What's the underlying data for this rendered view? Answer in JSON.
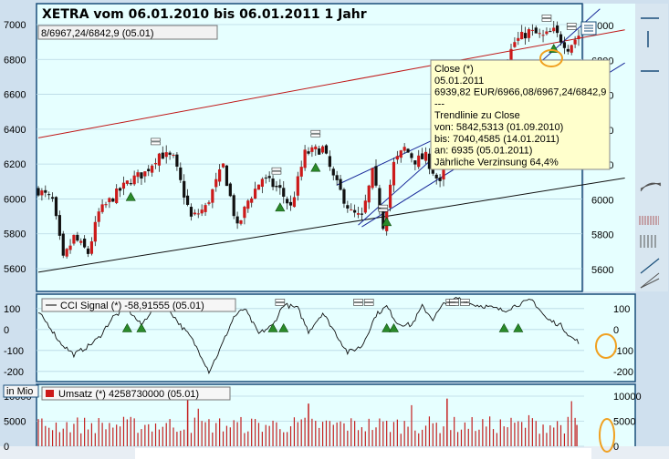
{
  "title": "XETRA vom 06.01.2010 bis 06.01.2011 1 Jahr",
  "top_readout": "8/6967,24/6842,9 (05.01)",
  "colors": {
    "panel_bg": "#e6ffff",
    "frame": "#1a4f7a",
    "up": "#cc1a1a",
    "down": "#111111",
    "signal": "#2a8a2a",
    "trend_red": "#c01818",
    "trend_blue": "#1a2a9a",
    "highlight": "#f0a020",
    "tooltip_bg": "#ffffcc"
  },
  "tooltip": {
    "lines": [
      "Close (*)",
      "05.01.2011",
      "6939,82 EUR/6966,08/6967,24/6842,9",
      "---",
      "Trendlinie zu Close",
      "von: 5842,5313 (01.09.2010)",
      "bis: 7040,4585 (14.01.2011)",
      "an: 6935 (05.01.2011)",
      "Jährliche Verzinsung 64,4%"
    ]
  },
  "toolbar": {
    "icons": [
      "menu-icon",
      "crosshair-icon",
      "hline-icon",
      "fan-icon",
      "arc-icon",
      "bars-icon",
      "grid-icon",
      "lines-icon",
      "pencil-icon",
      "pencil-fan-icon"
    ]
  },
  "panels": {
    "cci_label": "CCI Signal (*) -58,91555 (05.01)",
    "volume_label": "Umsatz (*) 4258730000 (05.01)",
    "volume_unit": "in Mio"
  },
  "chart_data": [
    {
      "type": "candlestick",
      "title": "XETRA vom 06.01.2010 bis 06.01.2011 1 Jahr",
      "ylim": [
        5480,
        7120
      ],
      "yticks_left": [
        5600,
        5800,
        6000,
        6200,
        6400,
        6600,
        6800,
        7000
      ],
      "yticks_right": [
        5600,
        5800,
        6000,
        6200,
        6400,
        6600,
        6800,
        7000
      ],
      "close_anchors": [
        [
          0,
          6050
        ],
        [
          8,
          5990
        ],
        [
          14,
          5650
        ],
        [
          20,
          5780
        ],
        [
          28,
          5690
        ],
        [
          34,
          5920
        ],
        [
          42,
          6010
        ],
        [
          52,
          6110
        ],
        [
          60,
          6150
        ],
        [
          68,
          6260
        ],
        [
          76,
          6230
        ],
        [
          86,
          5890
        ],
        [
          94,
          5950
        ],
        [
          104,
          6190
        ],
        [
          112,
          5830
        ],
        [
          118,
          5990
        ],
        [
          126,
          6120
        ],
        [
          136,
          6050
        ],
        [
          142,
          5950
        ],
        [
          150,
          6260
        ],
        [
          160,
          6290
        ],
        [
          166,
          6120
        ],
        [
          176,
          5920
        ],
        [
          182,
          5890
        ],
        [
          188,
          6150
        ],
        [
          194,
          5850
        ],
        [
          200,
          6200
        ],
        [
          206,
          6290
        ],
        [
          212,
          6220
        ],
        [
          218,
          6240
        ],
        [
          226,
          6080
        ],
        [
          230,
          6340
        ],
        [
          236,
          6420
        ],
        [
          242,
          6560
        ],
        [
          250,
          6620
        ],
        [
          256,
          6600
        ],
        [
          262,
          6760
        ],
        [
          268,
          6900
        ],
        [
          276,
          6960
        ],
        [
          284,
          6930
        ],
        [
          290,
          6960
        ],
        [
          298,
          6870
        ],
        [
          304,
          6940
        ]
      ],
      "trendlines": [
        {
          "color": "red",
          "from": [
            0,
            6350
          ],
          "to": [
            330,
            6970
          ]
        },
        {
          "color": "black",
          "from": [
            0,
            5580
          ],
          "to": [
            330,
            6120
          ]
        },
        {
          "color": "blue",
          "from": [
            180,
            5850
          ],
          "to": [
            316,
            7090
          ]
        },
        {
          "color": "blue",
          "from": [
            168,
            6080
          ],
          "to": [
            300,
            6710
          ]
        },
        {
          "color": "blue",
          "from": [
            182,
            5840
          ],
          "to": [
            330,
            6780
          ]
        }
      ],
      "signal_triangles": [
        52,
        136,
        156,
        196,
        236,
        264,
        290
      ],
      "signal_flags": [
        66,
        134,
        156,
        194,
        234,
        258,
        286,
        300
      ]
    },
    {
      "type": "line",
      "name": "CCI Signal (*)",
      "ylim": [
        -240,
        160
      ],
      "yticks": [
        -200,
        -100,
        0,
        100
      ],
      "value_anchors": [
        [
          0,
          80
        ],
        [
          6,
          20
        ],
        [
          12,
          -60
        ],
        [
          20,
          -120
        ],
        [
          28,
          -80
        ],
        [
          34,
          -40
        ],
        [
          42,
          60
        ],
        [
          50,
          100
        ],
        [
          58,
          20
        ],
        [
          66,
          120
        ],
        [
          74,
          90
        ],
        [
          80,
          20
        ],
        [
          86,
          -40
        ],
        [
          92,
          -130
        ],
        [
          96,
          -200
        ],
        [
          102,
          -100
        ],
        [
          110,
          60
        ],
        [
          116,
          100
        ],
        [
          124,
          -20
        ],
        [
          132,
          20
        ],
        [
          138,
          120
        ],
        [
          146,
          100
        ],
        [
          152,
          -10
        ],
        [
          160,
          80
        ],
        [
          166,
          0
        ],
        [
          174,
          -110
        ],
        [
          182,
          -80
        ],
        [
          190,
          70
        ],
        [
          196,
          110
        ],
        [
          202,
          30
        ],
        [
          210,
          20
        ],
        [
          216,
          110
        ],
        [
          222,
          50
        ],
        [
          228,
          120
        ],
        [
          236,
          150
        ],
        [
          244,
          120
        ],
        [
          252,
          110
        ],
        [
          262,
          90
        ],
        [
          270,
          120
        ],
        [
          278,
          140
        ],
        [
          286,
          50
        ],
        [
          294,
          20
        ],
        [
          300,
          -40
        ],
        [
          304,
          -58.9
        ]
      ],
      "signal_triangles": [
        50,
        58,
        132,
        138,
        196,
        200,
        262,
        270
      ],
      "signal_flags": [
        136,
        180,
        186,
        232,
        234,
        240
      ]
    },
    {
      "type": "bar",
      "name": "Umsatz (*)",
      "ylim": [
        0,
        12000
      ],
      "yticks": [
        0,
        5000,
        10000
      ],
      "bar_count": 304,
      "typical_range": [
        2500,
        6000
      ],
      "spikes": [
        [
          84,
          9800
        ],
        [
          90,
          7500
        ],
        [
          152,
          8500
        ],
        [
          210,
          8200
        ],
        [
          230,
          9500
        ],
        [
          276,
          6200
        ],
        [
          300,
          9000
        ],
        [
          303,
          4259
        ]
      ]
    }
  ]
}
